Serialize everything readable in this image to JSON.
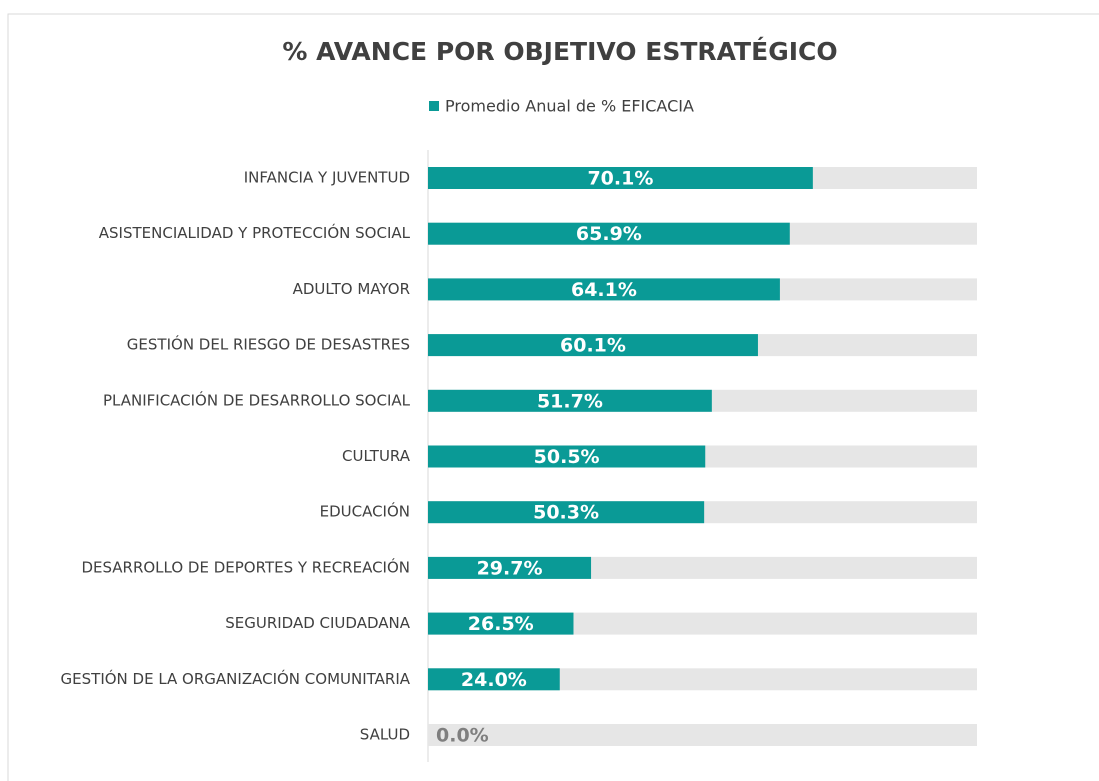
{
  "chart_data": {
    "type": "barh",
    "title": "% AVANCE POR OBJETIVO ESTRATÉGICO",
    "categories": [
      "INFANCIA Y JUVENTUD",
      "ASISTENCIALIDAD Y PROTECCIÓN SOCIAL",
      "ADULTO MAYOR",
      "GESTIÓN DEL RIESGO DE DESASTRES",
      "PLANIFICACIÓN DE DESARROLLO SOCIAL",
      "CULTURA",
      "EDUCACIÓN",
      "DESARROLLO DE DEPORTES Y RECREACIÓN",
      "SEGURIDAD CIUDADANA",
      "GESTIÓN DE LA ORGANIZACIÓN COMUNITARIA",
      "SALUD"
    ],
    "series": [
      {
        "name": "Promedio Anual de % EFICACIA",
        "color": "#0a9a96",
        "values": [
          70.1,
          65.9,
          64.1,
          60.1,
          51.7,
          50.5,
          50.3,
          29.7,
          26.5,
          24.0,
          0.0
        ],
        "value_labels": [
          "70.1%",
          "65.9%",
          "64.1%",
          "60.1%",
          "51.7%",
          "50.5%",
          "50.3%",
          "29.7%",
          "26.5%",
          "24.0%",
          "0.0%"
        ]
      }
    ],
    "xlim": [
      0,
      100
    ],
    "legend": "top"
  }
}
